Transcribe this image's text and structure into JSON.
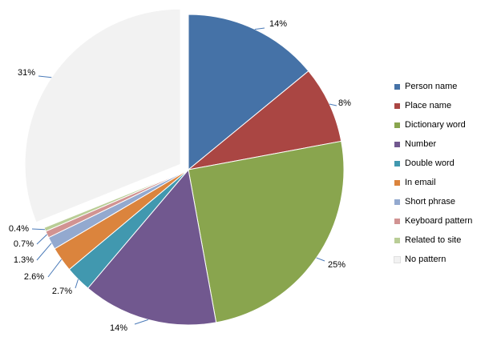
{
  "chart_data": {
    "type": "pie",
    "title": "",
    "start_angle_deg": 0,
    "direction": "clockwise",
    "legend_position": "right",
    "exploded_slice": "No pattern",
    "slices": [
      {
        "name": "Person name",
        "value": 14,
        "label": "14%",
        "color": "#4572A7"
      },
      {
        "name": "Place name",
        "value": 8,
        "label": "8%",
        "color": "#AA4643"
      },
      {
        "name": "Dictionary word",
        "value": 25,
        "label": "25%",
        "color": "#89A54E"
      },
      {
        "name": "Number",
        "value": 14,
        "label": "14%",
        "color": "#71588F"
      },
      {
        "name": "Double word",
        "value": 2.7,
        "label": "2.7%",
        "color": "#4198AF"
      },
      {
        "name": "In email",
        "value": 2.6,
        "label": "2.6%",
        "color": "#DB843D"
      },
      {
        "name": "Short phrase",
        "value": 1.3,
        "label": "1.3%",
        "color": "#93A9CF"
      },
      {
        "name": "Keyboard pattern",
        "value": 0.7,
        "label": "0.7%",
        "color": "#D19392"
      },
      {
        "name": "Related to site",
        "value": 0.4,
        "label": "0.4%",
        "color": "#B9CD96"
      },
      {
        "name": "No pattern",
        "value": 31,
        "label": "31%",
        "color": "#F2F2F2"
      }
    ]
  }
}
